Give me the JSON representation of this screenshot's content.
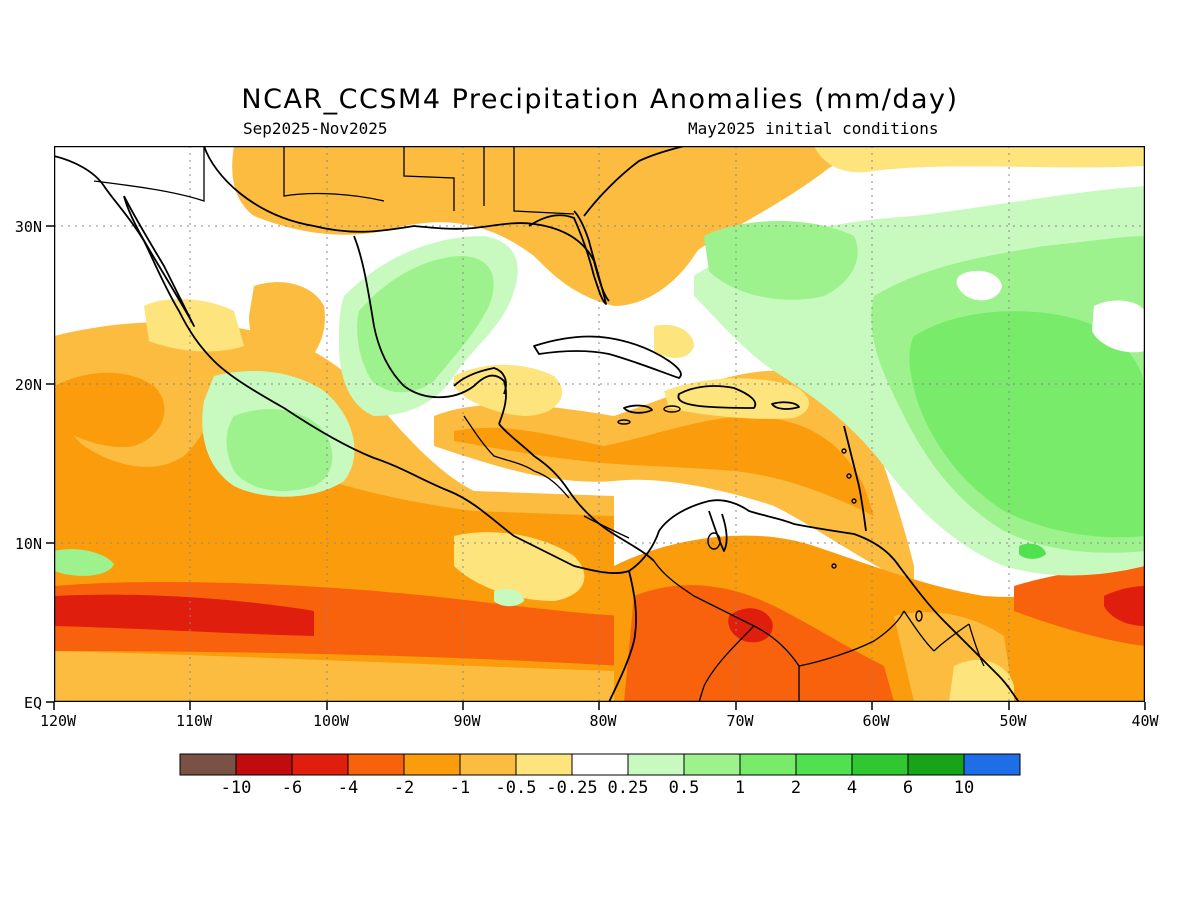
{
  "title": "NCAR_CCSM4 Precipitation Anomalies (mm/day)",
  "subtitle_left": "Sep2025-Nov2025",
  "subtitle_right": "May2025 initial conditions",
  "axes": {
    "lat_labels": [
      "30N",
      "20N",
      "10N",
      "EQ"
    ],
    "lon_labels": [
      "120W",
      "110W",
      "100W",
      "90W",
      "80W",
      "70W",
      "60W",
      "50W",
      "40W"
    ]
  },
  "colorbar": {
    "colors": [
      "#7a5245",
      "#c00c0c",
      "#e01e0e",
      "#f8620c",
      "#fa9c0c",
      "#fcbc40",
      "#fde47c",
      "#ffffff",
      "#c8fac0",
      "#9ef28e",
      "#78ec6a",
      "#50e050",
      "#30c830",
      "#18a418",
      "#1e6ee8"
    ],
    "labels": [
      "-10",
      "-6",
      "-4",
      "-2",
      "-1",
      "-0.5",
      "-0.25",
      "0.25",
      "0.5",
      "1",
      "2",
      "4",
      "6",
      "10"
    ]
  }
}
